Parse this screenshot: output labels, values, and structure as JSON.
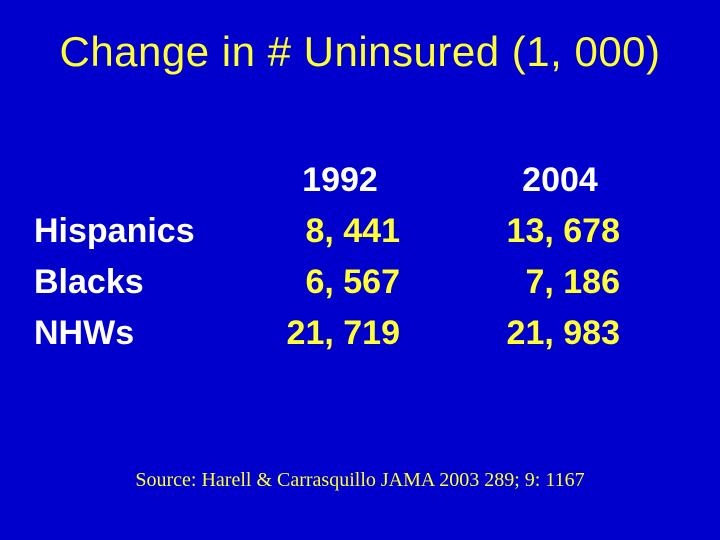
{
  "slide": {
    "background_color": "#0000cc",
    "title": "Change in # Uninsured (1, 000)",
    "title_color": "#ffff33",
    "title_fontsize": 42,
    "source": "Source: Harell & Carrasquillo JAMA 2003 289; 9: 1167",
    "source_color": "#ffff33",
    "source_fontsize": 20
  },
  "table": {
    "type": "table",
    "header_color": "#ffffff",
    "label_color": "#ffffff",
    "value_color": "#ffff33",
    "cell_fontsize": 34,
    "columns": [
      "1992",
      "2004"
    ],
    "rows": [
      {
        "label": "Hispanics",
        "values": [
          "8, 441",
          "13, 678"
        ]
      },
      {
        "label": "Blacks",
        "values": [
          "6, 567",
          "7, 186"
        ]
      },
      {
        "label": "NHWs",
        "values": [
          "21, 719",
          "21, 983"
        ]
      }
    ]
  }
}
